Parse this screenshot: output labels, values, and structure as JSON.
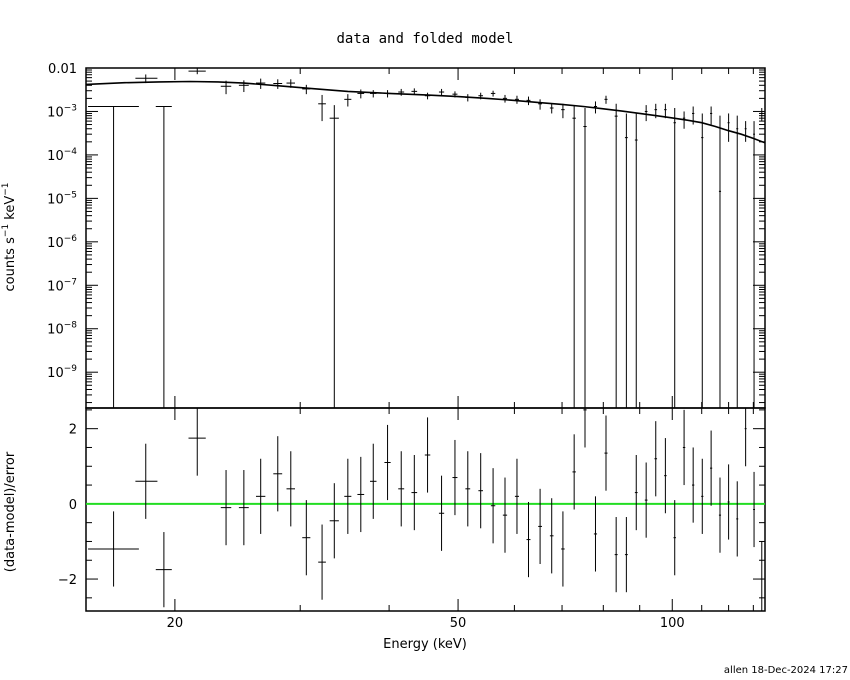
{
  "chart_data": [
    {
      "type": "scatter",
      "panel": "top",
      "title": "data and folded model",
      "ylabel_main": "counts s",
      "ylabel_exp1": "−1",
      "ylabel_mid": " keV",
      "ylabel_exp2": "−1",
      "xscale": "log",
      "yscale": "log",
      "xlim": [
        15,
        135
      ],
      "ylim": [
        1.5e-10,
        0.01
      ],
      "yticks": [
        {
          "v": 0.01,
          "m": "0.01",
          "e": ""
        },
        {
          "v": 0.001,
          "m": "10",
          "e": "−3"
        },
        {
          "v": 0.0001,
          "m": "10",
          "e": "−4"
        },
        {
          "v": 1e-05,
          "m": "10",
          "e": "−5"
        },
        {
          "v": 1e-06,
          "m": "10",
          "e": "−6"
        },
        {
          "v": 1e-07,
          "m": "10",
          "e": "−7"
        },
        {
          "v": 1e-08,
          "m": "10",
          "e": "−8"
        },
        {
          "v": 1e-09,
          "m": "10",
          "e": "−9"
        }
      ],
      "series": [
        {
          "role": "data",
          "points": [
            [
              16.4,
              15.1,
              17.8,
              0.0013,
              1.5e-10,
              0.0013
            ],
            [
              18.2,
              17.6,
              18.9,
              0.0058,
              0.0045,
              0.0071
            ],
            [
              19.3,
              18.8,
              19.8,
              0.0013,
              1.5e-10,
              0.0013
            ],
            [
              21.5,
              20.9,
              22.1,
              0.0085,
              0.0072,
              0.0098
            ],
            [
              23.6,
              23.2,
              24.0,
              0.0038,
              0.0025,
              0.0051
            ],
            [
              25.0,
              24.6,
              25.4,
              0.004,
              0.0028,
              0.0052
            ],
            [
              26.4,
              26.0,
              26.8,
              0.0045,
              0.0033,
              0.0057
            ],
            [
              27.9,
              27.5,
              28.3,
              0.0044,
              0.0033,
              0.0055
            ],
            [
              29.1,
              28.7,
              29.5,
              0.0045,
              0.0035,
              0.0055
            ],
            [
              30.6,
              30.2,
              31.0,
              0.0033,
              0.0025,
              0.0041
            ],
            [
              32.2,
              31.8,
              32.6,
              0.0015,
              0.0006,
              0.0024
            ],
            [
              33.5,
              33.0,
              34.0,
              0.0007,
              1.5e-10,
              0.0014
            ],
            [
              35.0,
              34.6,
              35.4,
              0.0019,
              0.0013,
              0.0025
            ],
            [
              36.5,
              36.1,
              36.9,
              0.0026,
              0.002,
              0.0032
            ],
            [
              38.0,
              37.6,
              38.4,
              0.0026,
              0.0021,
              0.0031
            ],
            [
              39.8,
              39.4,
              40.2,
              0.0026,
              0.0021,
              0.0031
            ],
            [
              41.6,
              41.2,
              42.0,
              0.0028,
              0.0023,
              0.0033
            ],
            [
              43.4,
              43.0,
              43.8,
              0.0029,
              0.0024,
              0.0034
            ],
            [
              45.3,
              44.9,
              45.7,
              0.0023,
              0.0019,
              0.0027
            ],
            [
              47.4,
              47.0,
              47.8,
              0.0028,
              0.0023,
              0.0033
            ],
            [
              49.5,
              49.1,
              49.9,
              0.0025,
              0.0021,
              0.0029
            ],
            [
              51.6,
              51.2,
              52.0,
              0.0021,
              0.0017,
              0.0025
            ],
            [
              53.8,
              53.4,
              54.2,
              0.0023,
              0.0019,
              0.0027
            ],
            [
              56.0,
              55.6,
              56.4,
              0.0026,
              0.0022,
              0.003
            ],
            [
              58.2,
              57.8,
              58.6,
              0.002,
              0.0016,
              0.0024
            ],
            [
              60.5,
              60.1,
              60.9,
              0.0019,
              0.0015,
              0.0023
            ],
            [
              62.8,
              62.4,
              63.2,
              0.0018,
              0.0014,
              0.0022
            ],
            [
              65.2,
              64.8,
              65.6,
              0.0015,
              0.0011,
              0.0019
            ],
            [
              67.7,
              67.3,
              68.1,
              0.0012,
              0.0009,
              0.0015
            ],
            [
              70.2,
              69.8,
              70.6,
              0.0011,
              0.0007,
              0.0015
            ],
            [
              72.8,
              72.4,
              73.2,
              0.0007,
              1.5e-10,
              0.0014
            ],
            [
              75.4,
              75.0,
              75.8,
              0.00045,
              1.5e-10,
              0.0012
            ],
            [
              78.0,
              77.6,
              78.4,
              0.0013,
              0.0009,
              0.0017
            ],
            [
              80.7,
              80.3,
              81.1,
              0.0019,
              0.0015,
              0.0023
            ],
            [
              83.4,
              83.0,
              83.8,
              0.00078,
              1.5e-10,
              0.0015
            ],
            [
              86.2,
              85.8,
              86.6,
              0.00025,
              1.5e-10,
              0.0009
            ],
            [
              89.0,
              88.6,
              89.4,
              0.00022,
              1.5e-10,
              0.0009
            ],
            [
              91.9,
              91.5,
              92.3,
              0.001,
              0.0006,
              0.0014
            ],
            [
              94.8,
              94.4,
              95.2,
              0.0011,
              0.0007,
              0.0015
            ],
            [
              97.8,
              97.4,
              98.2,
              0.0011,
              0.0007,
              0.0015
            ],
            [
              100.8,
              100.4,
              101.2,
              0.00055,
              1.5e-10,
              0.0012
            ],
            [
              103.9,
              103.5,
              104.3,
              0.0007,
              0.0004,
              0.001
            ],
            [
              107.0,
              106.6,
              107.4,
              0.0009,
              0.0005,
              0.0013
            ],
            [
              110.2,
              109.8,
              110.6,
              0.00025,
              1.5e-10,
              0.0009
            ],
            [
              113.4,
              113.0,
              113.8,
              0.0009,
              0.0005,
              0.0013
            ],
            [
              116.7,
              116.3,
              117.1,
              1.45e-05,
              1.5e-10,
              0.0008
            ],
            [
              120.0,
              119.6,
              120.4,
              0.00055,
              0.0002,
              0.0009
            ],
            [
              123.4,
              123.0,
              123.8,
              0.0004,
              1.5e-10,
              0.0008
            ],
            [
              126.8,
              126.4,
              127.2,
              0.0004,
              0.0002,
              0.0006
            ],
            [
              130.3,
              129.9,
              130.7,
              0.0003,
              1.5e-10,
              0.0006
            ],
            [
              133.6,
              133.0,
              134.2,
              0.0009,
              0.0006,
              0.0012
            ]
          ]
        },
        {
          "role": "model",
          "color": "#000000",
          "x": [
            15,
            17,
            19,
            21,
            23,
            25,
            28,
            31,
            35,
            40,
            45,
            50,
            55,
            60,
            65,
            70,
            75,
            80,
            85,
            90,
            95,
            100,
            105,
            110,
            115,
            120,
            125,
            130,
            135
          ],
          "y": [
            0.0042,
            0.0046,
            0.0048,
            0.0049,
            0.0048,
            0.0045,
            0.0039,
            0.0034,
            0.0029,
            0.0026,
            0.0024,
            0.0022,
            0.002,
            0.0018,
            0.0016,
            0.00145,
            0.0013,
            0.00115,
            0.00102,
            0.0009,
            0.0008,
            0.00071,
            0.00063,
            0.00055,
            0.00045,
            0.00036,
            0.0003,
            0.00024,
            0.00019
          ]
        }
      ]
    },
    {
      "type": "scatter",
      "panel": "bottom",
      "xlabel": "Energy (keV)",
      "ylabel": "(data-model)/error",
      "xscale": "log",
      "xlim": [
        15,
        135
      ],
      "ylim": [
        -2.85,
        2.55
      ],
      "xticks": [
        {
          "v": 20,
          "label": "20"
        },
        {
          "v": 50,
          "label": "50"
        },
        {
          "v": 100,
          "label": "100"
        }
      ],
      "yticks": [
        {
          "v": 2,
          "label": "2"
        },
        {
          "v": 0,
          "label": "0"
        },
        {
          "v": -2,
          "label": "−2"
        }
      ],
      "zero_line_color": "#22dd22",
      "series": [
        {
          "role": "residuals",
          "points": [
            [
              16.4,
              15.1,
              17.8,
              -1.2,
              -2.2,
              -0.2
            ],
            [
              18.2,
              17.6,
              18.9,
              0.6,
              -0.4,
              1.6
            ],
            [
              19.3,
              18.8,
              19.8,
              -1.75,
              -2.75,
              -0.75
            ],
            [
              21.5,
              20.9,
              22.1,
              1.75,
              0.75,
              2.75
            ],
            [
              23.6,
              23.2,
              24.0,
              -0.1,
              -1.1,
              0.9
            ],
            [
              25.0,
              24.6,
              25.4,
              -0.1,
              -1.1,
              0.9
            ],
            [
              26.4,
              26.0,
              26.8,
              0.2,
              -0.8,
              1.2
            ],
            [
              27.9,
              27.5,
              28.3,
              0.8,
              -0.2,
              1.8
            ],
            [
              29.1,
              28.7,
              29.5,
              0.4,
              -0.6,
              1.4
            ],
            [
              30.6,
              30.2,
              31.0,
              -0.9,
              -1.9,
              0.1
            ],
            [
              32.2,
              31.8,
              32.6,
              -1.55,
              -2.55,
              -0.55
            ],
            [
              33.5,
              33.0,
              34.0,
              -0.45,
              -1.45,
              0.55
            ],
            [
              35.0,
              34.6,
              35.4,
              0.2,
              -0.8,
              1.2
            ],
            [
              36.5,
              36.1,
              36.9,
              0.25,
              -0.75,
              1.25
            ],
            [
              38.0,
              37.6,
              38.4,
              0.6,
              -0.4,
              1.6
            ],
            [
              39.8,
              39.4,
              40.2,
              1.1,
              0.1,
              2.1
            ],
            [
              41.6,
              41.2,
              42.0,
              0.4,
              -0.6,
              1.4
            ],
            [
              43.4,
              43.0,
              43.8,
              0.3,
              -0.7,
              1.3
            ],
            [
              45.3,
              44.9,
              45.7,
              1.3,
              0.3,
              2.3
            ],
            [
              47.4,
              47.0,
              47.8,
              -0.25,
              -1.25,
              0.75
            ],
            [
              49.5,
              49.1,
              49.9,
              0.7,
              -0.3,
              1.7
            ],
            [
              51.6,
              51.2,
              52.0,
              0.4,
              -0.6,
              1.4
            ],
            [
              53.8,
              53.4,
              54.2,
              0.35,
              -0.65,
              1.35
            ],
            [
              56.0,
              55.6,
              56.4,
              -0.05,
              -1.05,
              0.95
            ],
            [
              58.2,
              57.8,
              58.6,
              -0.3,
              -1.3,
              0.7
            ],
            [
              60.5,
              60.1,
              60.9,
              0.2,
              -0.8,
              1.2
            ],
            [
              62.8,
              62.4,
              63.2,
              -0.95,
              -1.95,
              0.05
            ],
            [
              65.2,
              64.8,
              65.6,
              -0.6,
              -1.6,
              0.4
            ],
            [
              67.7,
              67.3,
              68.1,
              -0.85,
              -1.85,
              0.15
            ],
            [
              70.2,
              69.8,
              70.6,
              -1.2,
              -2.2,
              -0.2
            ],
            [
              72.8,
              72.4,
              73.2,
              0.85,
              -0.15,
              1.85
            ],
            [
              75.4,
              75.0,
              75.8,
              2.5,
              1.5,
              3.5
            ],
            [
              78.0,
              77.6,
              78.4,
              -0.8,
              -1.8,
              0.2
            ],
            [
              80.7,
              80.3,
              81.1,
              1.35,
              0.35,
              2.35
            ],
            [
              83.4,
              83.0,
              83.8,
              -1.35,
              -2.35,
              -0.35
            ],
            [
              86.2,
              85.8,
              86.6,
              -1.35,
              -2.35,
              -0.35
            ],
            [
              89.0,
              88.6,
              89.4,
              0.3,
              -0.7,
              1.3
            ],
            [
              91.9,
              91.5,
              92.3,
              0.1,
              -0.9,
              1.1
            ],
            [
              94.8,
              94.4,
              95.2,
              1.2,
              0.2,
              2.2
            ],
            [
              97.8,
              97.4,
              98.2,
              0.75,
              -0.25,
              1.75
            ],
            [
              100.8,
              100.4,
              101.2,
              -0.9,
              -1.9,
              0.1
            ],
            [
              103.9,
              103.5,
              104.3,
              1.5,
              0.5,
              2.5
            ],
            [
              107.0,
              106.6,
              107.4,
              0.5,
              -0.5,
              1.5
            ],
            [
              110.2,
              109.8,
              110.6,
              0.2,
              -0.8,
              1.2
            ],
            [
              113.4,
              113.0,
              113.8,
              0.95,
              -0.05,
              1.95
            ],
            [
              116.7,
              116.3,
              117.1,
              -0.3,
              -1.3,
              0.7
            ],
            [
              120.0,
              119.6,
              120.4,
              0.05,
              -0.95,
              1.05
            ],
            [
              123.4,
              123.0,
              123.8,
              -0.4,
              -1.4,
              0.6
            ],
            [
              126.8,
              126.4,
              127.2,
              2.0,
              1.0,
              3.0
            ],
            [
              130.3,
              129.9,
              130.7,
              -0.15,
              -1.15,
              0.85
            ],
            [
              133.6,
              133.0,
              134.2,
              -2.0,
              -3.0,
              -1.0
            ]
          ]
        }
      ]
    }
  ],
  "footer": {
    "stamp": "allen 18-Dec-2024 17:27"
  }
}
